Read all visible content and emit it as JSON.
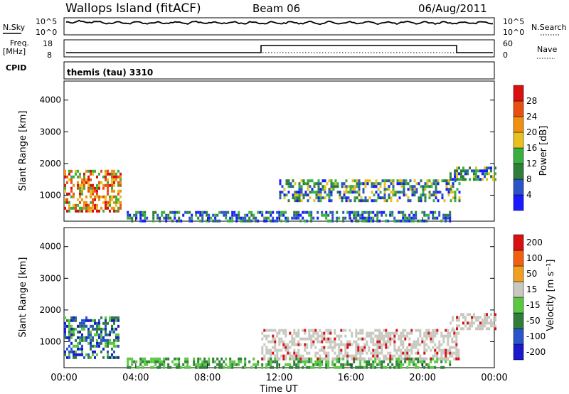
{
  "header": {
    "site": "Wallops Island (fitACF)",
    "beam": "Beam 06",
    "date": "06/Aug/2011"
  },
  "status_panels": {
    "nsky_label": "N.Sky",
    "freq_label": "Freq.",
    "freq_unit": "[MHz]",
    "cpid_label": "CPID",
    "nsearch_label": "N.Search",
    "nave_label": "Nave",
    "left_ticks_noise": [
      "10^5",
      "10^0"
    ],
    "right_ticks_noise": [
      "10^5",
      "10^0"
    ],
    "left_ticks_freq": [
      "18",
      "8"
    ],
    "right_ticks_nave": [
      "60",
      "0"
    ],
    "cpid_text": "themis (tau) 3310"
  },
  "chart_data": [
    {
      "type": "heatmap",
      "title": "",
      "ylabel": "Slant Range [km]",
      "xlabel": "",
      "ylim": [
        180,
        4600
      ],
      "yticks": [
        "1000",
        "2000",
        "3000",
        "4000"
      ],
      "colorbar": {
        "label": "Power [dB]",
        "ticks": [
          "4",
          "8",
          "12",
          "16",
          "20",
          "24",
          "28"
        ],
        "colors": [
          "#1a1aff",
          "#2a55c8",
          "#2e7d3a",
          "#38b040",
          "#e8c020",
          "#f09010",
          "#e85010",
          "#d81010"
        ]
      },
      "regions": [
        {
          "t0": 0.0,
          "t1": 3.2,
          "r0": 500,
          "r1": 1800,
          "level": "high"
        },
        {
          "t0": 3.5,
          "t1": 21.5,
          "r0": 200,
          "r1": 500,
          "level": "low"
        },
        {
          "t0": 12.0,
          "t1": 22.0,
          "r0": 800,
          "r1": 1500,
          "level": "medium"
        },
        {
          "t0": 21.5,
          "t1": 24.0,
          "r0": 1500,
          "r1": 1900,
          "level": "medium"
        }
      ]
    },
    {
      "type": "heatmap",
      "title": "",
      "ylabel": "Slant Range [km]",
      "xlabel": "Time UT",
      "ylim": [
        180,
        4600
      ],
      "yticks": [
        "1000",
        "2000",
        "3000",
        "4000"
      ],
      "xticks": [
        "00:00",
        "04:00",
        "08:00",
        "12:00",
        "16:00",
        "20:00",
        "00:00"
      ],
      "colorbar": {
        "label": "Velocity [m s⁻¹]",
        "ticks": [
          "200",
          "100",
          "50",
          "15",
          "-15",
          "-50",
          "-100",
          "-200"
        ],
        "colors": [
          "#1a1acc",
          "#2a55c8",
          "#2e7d3a",
          "#5ac840",
          "#c8c8c0",
          "#f0a020",
          "#f06010",
          "#d81010"
        ]
      },
      "regions": [
        {
          "t0": 0.0,
          "t1": 3.0,
          "r0": 500,
          "r1": 1800,
          "level": "toward"
        },
        {
          "t0": 3.5,
          "t1": 21.5,
          "r0": 200,
          "r1": 500,
          "level": "slow"
        },
        {
          "t0": 11.0,
          "t1": 22.0,
          "r0": 500,
          "r1": 1400,
          "level": "ground"
        },
        {
          "t0": 21.5,
          "t1": 24.0,
          "r0": 1400,
          "r1": 1900,
          "level": "ground"
        }
      ]
    }
  ]
}
